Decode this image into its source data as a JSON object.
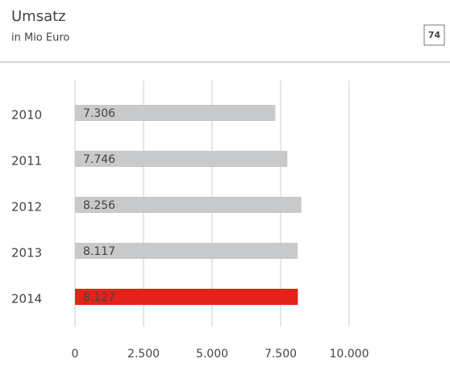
{
  "page_number": 74,
  "chart_data": {
    "type": "barh",
    "title": "Umsatz",
    "subtitle": "in Mio Euro",
    "categories": [
      "2010",
      "2011",
      "2012",
      "2013",
      "2014"
    ],
    "values": [
      7306,
      7746,
      8256,
      8117,
      8127
    ],
    "value_labels": [
      "7.306",
      "7.746",
      "8.256",
      "8.117",
      "8.127"
    ],
    "colors": [
      "#c8c9cb",
      "#c8c9cb",
      "#c8c9cb",
      "#c8c9cb",
      "#e2231a"
    ],
    "xlim": [
      0,
      10000
    ],
    "xticks": [
      0,
      {
        "value": 2500,
        "label": "2.500"
      },
      {
        "value": 5000,
        "label": "5.000"
      },
      {
        "value": 7500,
        "label": "7.500"
      },
      {
        "value": 10000,
        "label": "10.000"
      }
    ],
    "grid": true
  }
}
